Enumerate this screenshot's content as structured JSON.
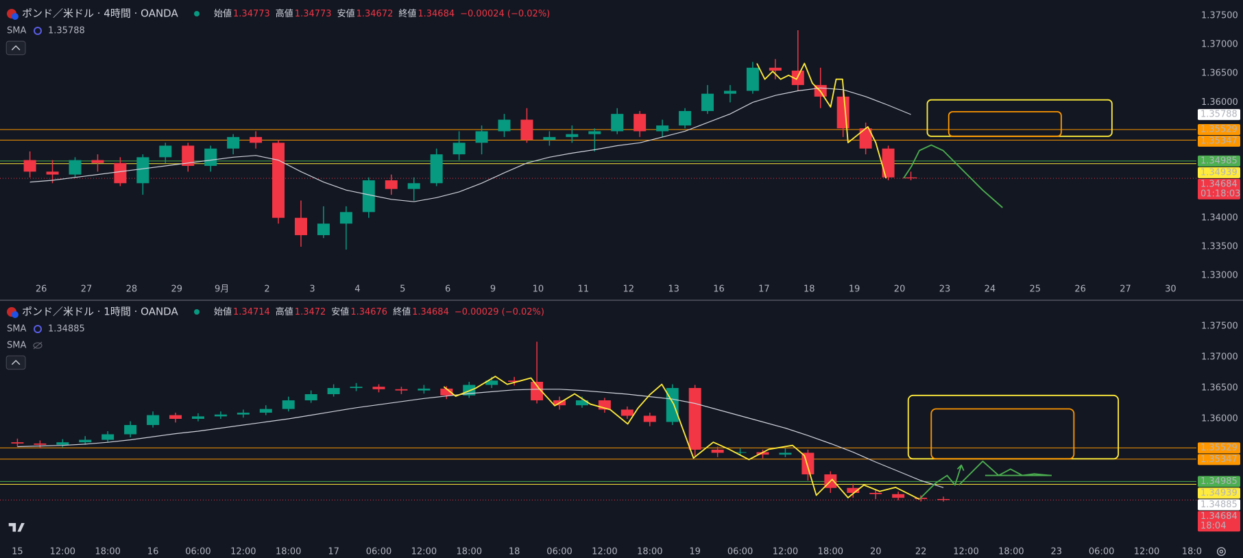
{
  "chart_data": [
    {
      "type": "candlestick",
      "title": "ポンド／米ドル · 4時間 · OANDA",
      "ohlc": [
        {
          "label": "始値",
          "value": 1.34773
        },
        {
          "label": "高値",
          "value": 1.34773
        },
        {
          "label": "安値",
          "value": 1.34672
        },
        {
          "label": "終値",
          "value": 1.34684
        }
      ],
      "change": "−0.00024 (−0.02%)",
      "indicators": [
        {
          "name": "SMA",
          "value": 1.35788,
          "color": "#d1d4dc",
          "values": [
            1.3462,
            1.3465,
            1.347,
            1.3475,
            1.348,
            1.3485,
            1.349,
            1.3495,
            1.35,
            1.3505,
            1.3508,
            1.35,
            1.348,
            1.3462,
            1.3448,
            1.344,
            1.3432,
            1.3428,
            1.3435,
            1.3445,
            1.346,
            1.3478,
            1.3495,
            1.3505,
            1.3512,
            1.3518,
            1.3525,
            1.353,
            1.354,
            1.355,
            1.3565,
            1.358,
            1.36,
            1.3612,
            1.362,
            1.3625,
            1.3622,
            1.361,
            1.3595,
            1.3579
          ]
        }
      ],
      "x": [
        -0.25,
        0.25,
        0.75,
        1.25,
        1.75,
        2.25,
        2.75,
        3.25,
        3.75,
        4.25,
        4.75,
        5.25,
        5.75,
        6.25,
        6.75,
        7.25,
        7.75,
        8.25,
        8.75,
        9.25,
        9.75,
        10.25,
        10.75,
        11.25,
        11.75,
        12.25,
        12.75,
        13.25,
        13.75,
        14.25,
        14.75,
        15.25,
        15.75,
        16.25,
        16.75,
        17.25,
        17.75,
        18.25,
        18.75,
        19.25
      ],
      "open": [
        1.35,
        1.348,
        1.3475,
        1.35,
        1.3495,
        1.346,
        1.3505,
        1.3525,
        1.349,
        1.352,
        1.354,
        1.353,
        1.34,
        1.337,
        1.339,
        1.341,
        1.3465,
        1.345,
        1.346,
        1.351,
        1.353,
        1.355,
        1.357,
        1.3535,
        1.354,
        1.3545,
        1.355,
        1.358,
        1.355,
        1.356,
        1.3585,
        1.3615,
        1.362,
        1.366,
        1.3655,
        1.363,
        1.361,
        1.3555,
        1.352,
        1.347
      ],
      "high": [
        1.3515,
        1.35,
        1.3505,
        1.351,
        1.3505,
        1.351,
        1.353,
        1.353,
        1.3525,
        1.3545,
        1.355,
        1.3535,
        1.343,
        1.342,
        1.342,
        1.347,
        1.3475,
        1.347,
        1.352,
        1.355,
        1.356,
        1.358,
        1.359,
        1.355,
        1.356,
        1.3555,
        1.359,
        1.3585,
        1.357,
        1.359,
        1.363,
        1.363,
        1.367,
        1.3675,
        1.3725,
        1.366,
        1.362,
        1.3565,
        1.3525,
        1.348
      ],
      "low": [
        1.347,
        1.346,
        1.347,
        1.348,
        1.3455,
        1.344,
        1.3495,
        1.348,
        1.348,
        1.351,
        1.352,
        1.339,
        1.335,
        1.3365,
        1.3345,
        1.34,
        1.344,
        1.343,
        1.3455,
        1.35,
        1.351,
        1.354,
        1.353,
        1.3525,
        1.353,
        1.3515,
        1.3545,
        1.354,
        1.354,
        1.3555,
        1.358,
        1.36,
        1.3615,
        1.364,
        1.362,
        1.359,
        1.354,
        1.351,
        1.3465,
        1.3465
      ],
      "close": [
        1.348,
        1.3475,
        1.35,
        1.3495,
        1.346,
        1.3505,
        1.3525,
        1.349,
        1.352,
        1.354,
        1.353,
        1.34,
        1.337,
        1.339,
        1.341,
        1.3465,
        1.345,
        1.346,
        1.351,
        1.353,
        1.355,
        1.357,
        1.3535,
        1.354,
        1.3545,
        1.355,
        1.358,
        1.355,
        1.356,
        1.3585,
        1.3615,
        1.362,
        1.366,
        1.3655,
        1.363,
        1.361,
        1.3555,
        1.352,
        1.347,
        1.34684
      ],
      "up_color": "#089981",
      "down_color": "#f23645",
      "xlim": [
        -0.912,
        25.57
      ],
      "xticks": [
        {
          "value": 0,
          "label": "26"
        },
        {
          "value": 1,
          "label": "27"
        },
        {
          "value": 2,
          "label": "28"
        },
        {
          "value": 3,
          "label": "29"
        },
        {
          "value": 4,
          "label": "9月"
        },
        {
          "value": 5,
          "label": "2"
        },
        {
          "value": 6,
          "label": "3"
        },
        {
          "value": 7,
          "label": "4"
        },
        {
          "value": 8,
          "label": "5"
        },
        {
          "value": 9,
          "label": "6"
        },
        {
          "value": 10,
          "label": "9"
        },
        {
          "value": 11,
          "label": "10"
        },
        {
          "value": 12,
          "label": "11"
        },
        {
          "value": 13,
          "label": "12"
        },
        {
          "value": 14,
          "label": "13"
        },
        {
          "value": 15,
          "label": "16"
        },
        {
          "value": 16,
          "label": "17"
        },
        {
          "value": 17,
          "label": "18"
        },
        {
          "value": 18,
          "label": "19"
        },
        {
          "value": 19,
          "label": "20"
        },
        {
          "value": 20,
          "label": "23"
        },
        {
          "value": 21,
          "label": "24"
        },
        {
          "value": 22,
          "label": "25"
        },
        {
          "value": 23,
          "label": "26"
        },
        {
          "value": 24,
          "label": "27"
        },
        {
          "value": 25,
          "label": "30"
        }
      ],
      "ylim": [
        1.32905,
        1.37773
      ],
      "yticks": [
        {
          "value": 1.375,
          "label": "1.37500"
        },
        {
          "value": 1.37,
          "label": "1.37000"
        },
        {
          "value": 1.365,
          "label": "1.36500"
        },
        {
          "value": 1.36,
          "label": "1.36000"
        },
        {
          "value": 1.34,
          "label": "1.34000"
        },
        {
          "value": 1.335,
          "label": "1.33500"
        },
        {
          "value": 1.33,
          "label": "1.33000"
        }
      ],
      "levels": [
        {
          "value": 1.35529,
          "color": "#ff9800"
        },
        {
          "value": 1.35347,
          "color": "#ff9800"
        },
        {
          "value": 1.34985,
          "color": "#4caf50"
        },
        {
          "value": 1.34939,
          "color": "#ffeb3b"
        }
      ],
      "last_price": {
        "value": 1.34684,
        "countdown": "01:18:03",
        "color": "#f23645"
      }
    },
    {
      "type": "candlestick",
      "title": "ポンド／米ドル · 1時間 · OANDA",
      "ohlc": [
        {
          "label": "始値",
          "value": 1.34714
        },
        {
          "label": "高値",
          "value": 1.3472
        },
        {
          "label": "安値",
          "value": 1.34676
        },
        {
          "label": "終値",
          "value": 1.34684
        }
      ],
      "change": "−0.00029 (−0.02%)",
      "indicators": [
        {
          "name": "SMA",
          "value": 1.34885,
          "color": "#d1d4dc",
          "values": [
            1.3555,
            1.3556,
            1.3557,
            1.3559,
            1.3562,
            1.3566,
            1.3571,
            1.3576,
            1.358,
            1.3585,
            1.359,
            1.3595,
            1.36,
            1.3606,
            1.3612,
            1.3618,
            1.3623,
            1.3628,
            1.3633,
            1.3637,
            1.3641,
            1.3644,
            1.3647,
            1.3648,
            1.3648,
            1.3646,
            1.3643,
            1.364,
            1.3636,
            1.3632,
            1.3625,
            1.3615,
            1.3605,
            1.3595,
            1.3585,
            1.3573,
            1.356,
            1.3546,
            1.353,
            1.3515,
            1.35,
            1.34885
          ]
        },
        {
          "name": "SMA"
        }
      ],
      "x": [
        0,
        0.5,
        1,
        1.5,
        2,
        2.5,
        3,
        3.5,
        4,
        4.5,
        5,
        5.5,
        6,
        6.5,
        7,
        7.5,
        8,
        8.5,
        9,
        9.5,
        10,
        10.5,
        11,
        11.5,
        12,
        12.5,
        13,
        13.5,
        14,
        14.5,
        15,
        15.5,
        16,
        16.5,
        17,
        17.5,
        18,
        18.5,
        19,
        19.5,
        20,
        20.5
      ],
      "open": [
        1.3562,
        1.356,
        1.3558,
        1.3562,
        1.3566,
        1.3575,
        1.359,
        1.3606,
        1.36,
        1.3604,
        1.3607,
        1.361,
        1.3616,
        1.363,
        1.364,
        1.365,
        1.3652,
        1.3648,
        1.3646,
        1.3649,
        1.3638,
        1.3655,
        1.3662,
        1.366,
        1.363,
        1.3622,
        1.363,
        1.3615,
        1.3605,
        1.3595,
        1.365,
        1.355,
        1.3545,
        1.3546,
        1.3542,
        1.3545,
        1.351,
        1.3488,
        1.348,
        1.3478,
        1.3472,
        1.347
      ],
      "high": [
        1.3568,
        1.3565,
        1.3567,
        1.3572,
        1.358,
        1.3596,
        1.3612,
        1.361,
        1.3609,
        1.3612,
        1.3615,
        1.3622,
        1.3636,
        1.3646,
        1.3656,
        1.3658,
        1.3656,
        1.3652,
        1.3655,
        1.3653,
        1.366,
        1.3668,
        1.3668,
        1.3725,
        1.3636,
        1.3636,
        1.3634,
        1.362,
        1.361,
        1.3656,
        1.3655,
        1.3555,
        1.3552,
        1.355,
        1.3552,
        1.355,
        1.3515,
        1.3495,
        1.3486,
        1.3482,
        1.3476,
        1.3474
      ],
      "low": [
        1.3555,
        1.3552,
        1.3554,
        1.3558,
        1.3562,
        1.357,
        1.3586,
        1.3594,
        1.3596,
        1.36,
        1.3602,
        1.3606,
        1.3612,
        1.3626,
        1.3636,
        1.3645,
        1.3643,
        1.364,
        1.3641,
        1.3632,
        1.3634,
        1.365,
        1.3654,
        1.3625,
        1.3615,
        1.3618,
        1.361,
        1.36,
        1.3588,
        1.359,
        1.354,
        1.3538,
        1.354,
        1.3536,
        1.3538,
        1.35,
        1.348,
        1.3472,
        1.347,
        1.3468,
        1.3466,
        1.3466
      ],
      "close": [
        1.356,
        1.3558,
        1.3562,
        1.3566,
        1.3575,
        1.359,
        1.3606,
        1.36,
        1.3604,
        1.3607,
        1.361,
        1.3616,
        1.363,
        1.364,
        1.365,
        1.3652,
        1.3648,
        1.3646,
        1.3649,
        1.3638,
        1.3655,
        1.3662,
        1.366,
        1.363,
        1.3622,
        1.363,
        1.3615,
        1.3605,
        1.3595,
        1.365,
        1.355,
        1.3545,
        1.3546,
        1.3542,
        1.3545,
        1.351,
        1.3488,
        1.348,
        1.3478,
        1.3472,
        1.347,
        1.34684
      ],
      "up_color": "#089981",
      "down_color": "#f23645",
      "xlim": [
        -0.386,
        26.1
      ],
      "xticks": [
        {
          "value": 0,
          "label": "15"
        },
        {
          "value": 1,
          "label": "12:00"
        },
        {
          "value": 2,
          "label": "18:00"
        },
        {
          "value": 3,
          "label": "16"
        },
        {
          "value": 4,
          "label": "06:00"
        },
        {
          "value": 5,
          "label": "12:00"
        },
        {
          "value": 6,
          "label": "18:00"
        },
        {
          "value": 7,
          "label": "17"
        },
        {
          "value": 8,
          "label": "06:00"
        },
        {
          "value": 9,
          "label": "12:00"
        },
        {
          "value": 10,
          "label": "18:00"
        },
        {
          "value": 11,
          "label": "18"
        },
        {
          "value": 12,
          "label": "06:00"
        },
        {
          "value": 13,
          "label": "12:00"
        },
        {
          "value": 14,
          "label": "18:00"
        },
        {
          "value": 15,
          "label": "19"
        },
        {
          "value": 16,
          "label": "06:00"
        },
        {
          "value": 17,
          "label": "12:00"
        },
        {
          "value": 18,
          "label": "18:00"
        },
        {
          "value": 19,
          "label": "20"
        },
        {
          "value": 20,
          "label": "22"
        },
        {
          "value": 21,
          "label": "12:00"
        },
        {
          "value": 22,
          "label": "18:00"
        },
        {
          "value": 23,
          "label": "23"
        },
        {
          "value": 24,
          "label": "06:00"
        },
        {
          "value": 25,
          "label": "12:00"
        },
        {
          "value": 26,
          "label": "18:0"
        }
      ],
      "ylim": [
        1.34011,
        1.379
      ],
      "yticks": [
        {
          "value": 1.375,
          "label": "1.37500"
        },
        {
          "value": 1.37,
          "label": "1.37000"
        },
        {
          "value": 1.365,
          "label": "1.36500"
        },
        {
          "value": 1.36,
          "label": "1.36000"
        }
      ],
      "levels": [
        {
          "value": 1.35529,
          "color": "#ff9800"
        },
        {
          "value": 1.35347,
          "color": "#ff9800"
        },
        {
          "value": 1.34985,
          "color": "#4caf50"
        },
        {
          "value": 1.34939,
          "color": "#ffeb3b"
        }
      ],
      "last_price": {
        "value": 1.34684,
        "countdown": "18:04",
        "color": "#f23645"
      }
    }
  ]
}
